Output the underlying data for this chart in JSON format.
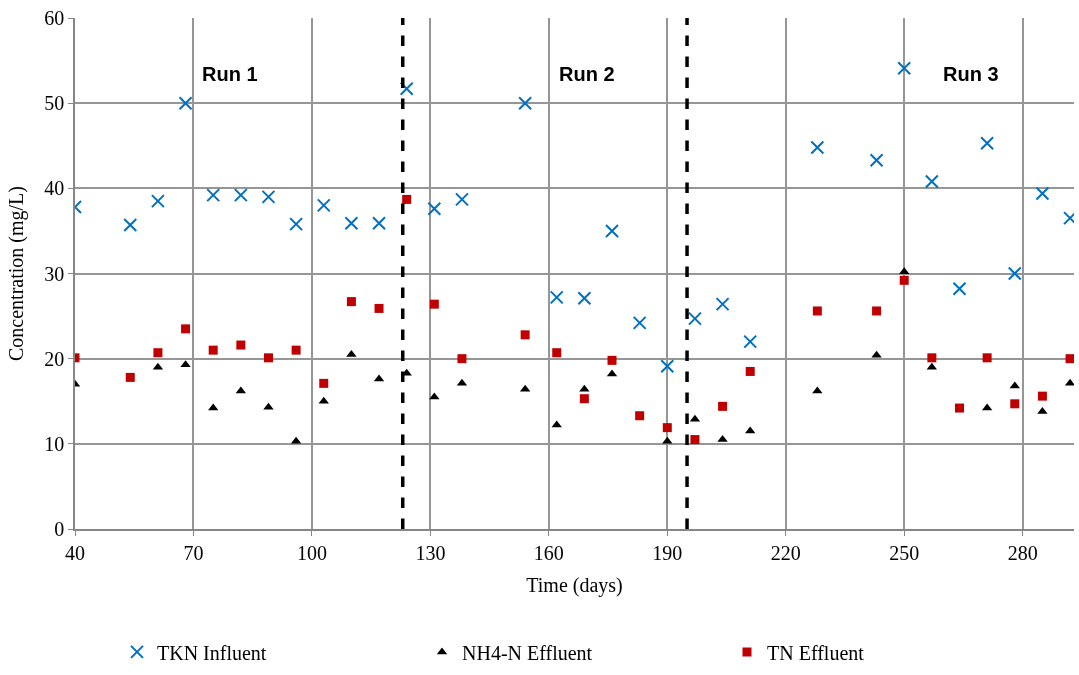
{
  "chart_data": {
    "type": "scatter",
    "xlabel": "Time (days)",
    "ylabel": "Concentration (mg/L)",
    "x": [
      40,
      54,
      61,
      68,
      75,
      82,
      89,
      96,
      103,
      110,
      117,
      124,
      131,
      138,
      154,
      162,
      169,
      176,
      183,
      190,
      197,
      204,
      211,
      228,
      243,
      250,
      257,
      264,
      271,
      278,
      285,
      292
    ],
    "series": [
      {
        "name": "TKN Influent",
        "color": "#0070c0",
        "marker": "cross",
        "values": [
          37.8,
          35.7,
          38.5,
          50,
          39.2,
          39.2,
          39,
          35.8,
          38,
          35.9,
          35.9,
          51.7,
          37.6,
          38.7,
          50,
          27.2,
          27.1,
          35,
          24.2,
          19.1,
          24.7,
          26.4,
          22,
          44.8,
          43.3,
          54.1,
          40.8,
          28.2,
          45.3,
          30,
          39.4,
          36.5
        ]
      },
      {
        "name": "NH4-N Effluent",
        "color": "#000000",
        "marker": "triangle",
        "values": [
          17,
          null,
          19,
          19.3,
          14.2,
          16.2,
          14.3,
          10.3,
          15,
          20.5,
          17.6,
          18.3,
          15.5,
          17.1,
          16.4,
          12.2,
          16.4,
          18.2,
          null,
          10.3,
          12.9,
          10.5,
          11.5,
          16.2,
          20.4,
          30.2,
          19,
          null,
          14.2,
          16.8,
          13.8,
          17.1
        ]
      },
      {
        "name": "TN Effluent",
        "color": "#c00000",
        "marker": "square",
        "values": [
          20.1,
          17.8,
          20.7,
          23.5,
          21,
          21.6,
          20.1,
          21,
          17.1,
          26.7,
          25.9,
          38.7,
          26.4,
          20,
          22.8,
          20.7,
          15.3,
          19.8,
          13.3,
          11.9,
          10.5,
          14.4,
          18.5,
          25.6,
          25.6,
          29.2,
          20.1,
          14.2,
          20.1,
          14.7,
          15.6,
          20
        ]
      }
    ],
    "xlim": [
      40,
      293
    ],
    "xticks": [
      40,
      70,
      100,
      130,
      160,
      190,
      220,
      250,
      280
    ],
    "ylim": [
      0,
      60
    ],
    "yticks": [
      0,
      10,
      20,
      30,
      40,
      50,
      60
    ],
    "grid": true,
    "legend": "bottom",
    "ref_lines": [
      {
        "axis": "x",
        "value": 123,
        "color": "#000000",
        "line_style": "dashed"
      },
      {
        "axis": "x",
        "value": 195,
        "color": "#000000",
        "line_style": "dashed"
      }
    ],
    "annotations": [
      "Run 1",
      "Run 2",
      "Run 3"
    ]
  }
}
